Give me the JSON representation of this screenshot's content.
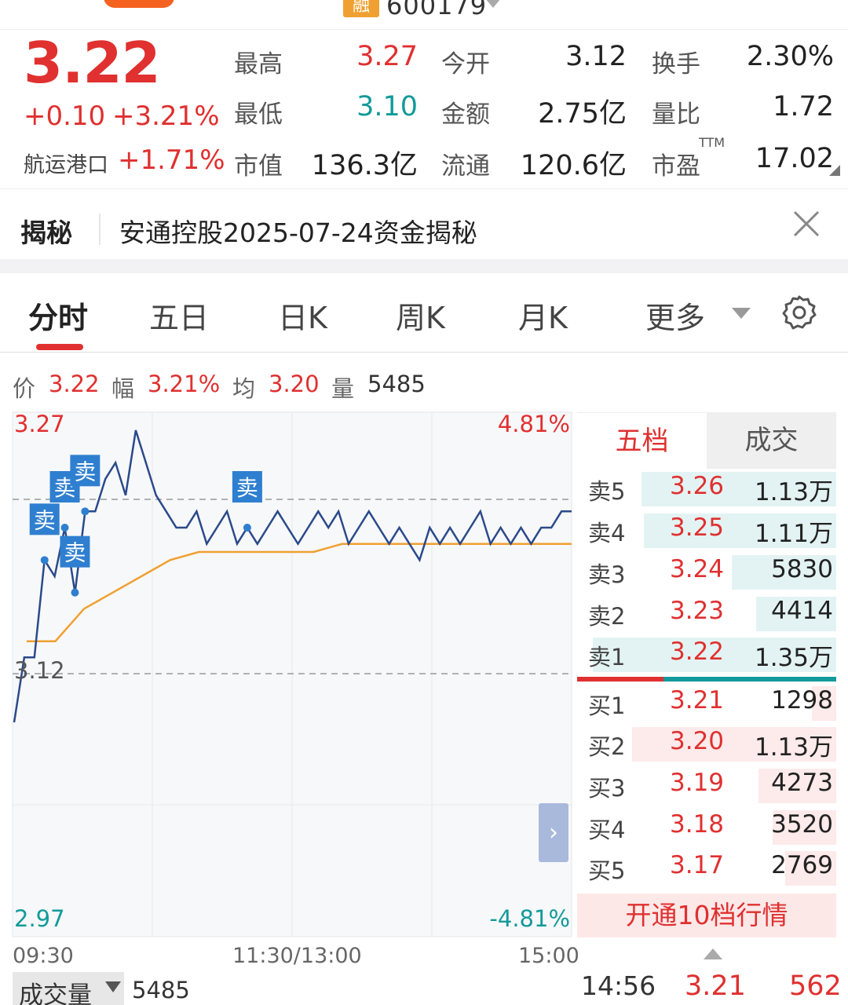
{
  "header": {
    "badge": "融",
    "code": "600179"
  },
  "quote": {
    "price": "3.22",
    "change_abs": "+0.10",
    "change_pct": "+3.21%",
    "sector_name": "航运港口",
    "sector_pct": "+1.71%",
    "stats": [
      {
        "label": "最高",
        "value": "3.27",
        "color": "#e03030"
      },
      {
        "label": "今开",
        "value": "3.12",
        "color": "#222222"
      },
      {
        "label": "换手",
        "value": "2.30%",
        "color": "#222222"
      },
      {
        "label": "最低",
        "value": "3.10",
        "color": "#139a9a"
      },
      {
        "label": "金额",
        "value": "2.75亿",
        "color": "#222222"
      },
      {
        "label": "量比",
        "value": "1.72",
        "color": "#222222"
      },
      {
        "label": "市值",
        "value": "136.3亿",
        "color": "#222222"
      },
      {
        "label": "流通",
        "value": "120.6亿",
        "color": "#222222"
      },
      {
        "label": "市盈",
        "value": "17.02",
        "color": "#222222"
      }
    ],
    "ttm_label": "TTM"
  },
  "reveal": {
    "tag": "揭秘",
    "text": "安通控股2025-07-24资金揭秘"
  },
  "tabs": [
    "分时",
    "五日",
    "日K",
    "周K",
    "月K",
    "更多"
  ],
  "info_line": {
    "price_label": "价",
    "price": "3.22",
    "amp_label": "幅",
    "amp": "3.21%",
    "avg_label": "均",
    "avg": "3.20",
    "vol_label": "量",
    "vol": "5485"
  },
  "chart": {
    "y_top": "3.27",
    "y_mid": "3.12",
    "y_bottom": "2.97",
    "pct_top": "4.81%",
    "pct_bottom": "-4.81%",
    "t_start": "09:30",
    "t_mid": "11:30/13:00",
    "t_end": "15:00",
    "sell_marker": "卖",
    "expand_glyph": "›"
  },
  "chart_data": {
    "type": "line",
    "ylim": [
      2.97,
      3.27
    ],
    "reference": 3.12,
    "x_labels": [
      "09:30",
      "11:30/13:00",
      "15:00"
    ],
    "series": [
      {
        "values": [
          3.09,
          3.13,
          3.13,
          3.19,
          3.18,
          3.21,
          3.17,
          3.22,
          3.22,
          3.24,
          3.25,
          3.23,
          3.27,
          3.25,
          3.23,
          3.22,
          3.21,
          3.21,
          3.22,
          3.2,
          3.21,
          3.22,
          3.2,
          3.21,
          3.2,
          3.21,
          3.22,
          3.21,
          3.2,
          3.21,
          3.22,
          3.21,
          3.22,
          3.2,
          3.21,
          3.22,
          3.21,
          3.2,
          3.21,
          3.2,
          3.19,
          3.21,
          3.2,
          3.21,
          3.2,
          3.21,
          3.22,
          3.2,
          3.21,
          3.2,
          3.21,
          3.2,
          3.21,
          3.21,
          3.22,
          3.22
        ]
      },
      {
        "values": [
          3.14,
          3.14,
          3.16,
          3.17,
          3.18,
          3.19,
          3.195,
          3.195,
          3.195,
          3.195,
          3.195,
          3.2,
          3.2,
          3.2,
          3.2,
          3.2,
          3.2,
          3.2,
          3.2,
          3.2
        ]
      }
    ]
  },
  "order_book": {
    "tab_active": "五档",
    "tab_other": "成交",
    "asks": [
      {
        "label": "卖5",
        "price": "3.26",
        "vol": "1.13万",
        "bar": 0.8
      },
      {
        "label": "卖4",
        "price": "3.25",
        "vol": "1.11万",
        "bar": 0.79
      },
      {
        "label": "卖3",
        "price": "3.24",
        "vol": "5830",
        "bar": 0.43
      },
      {
        "label": "卖2",
        "price": "3.23",
        "vol": "4414",
        "bar": 0.33
      },
      {
        "label": "卖1",
        "price": "3.22",
        "vol": "1.35万",
        "bar": 1.0
      }
    ],
    "bids": [
      {
        "label": "买1",
        "price": "3.21",
        "vol": "1298",
        "bar": 0.1
      },
      {
        "label": "买2",
        "price": "3.20",
        "vol": "1.13万",
        "bar": 0.84
      },
      {
        "label": "买3",
        "price": "3.19",
        "vol": "4273",
        "bar": 0.32
      },
      {
        "label": "买4",
        "price": "3.18",
        "vol": "3520",
        "bar": 0.26
      },
      {
        "label": "买5",
        "price": "3.17",
        "vol": "2769",
        "bar": 0.21
      }
    ],
    "upgrade": "开通10档行情"
  },
  "bottom": {
    "vol_label": "成交量",
    "vol_value": "5485",
    "tick_time": "14:56",
    "tick_price": "3.21",
    "tick_vol": "562"
  },
  "colors": {
    "up": "#e03030",
    "down": "#139a9a",
    "price_line": "#2b4a8a",
    "avg_line": "#f0a030",
    "marker": "#2f7fd0"
  }
}
